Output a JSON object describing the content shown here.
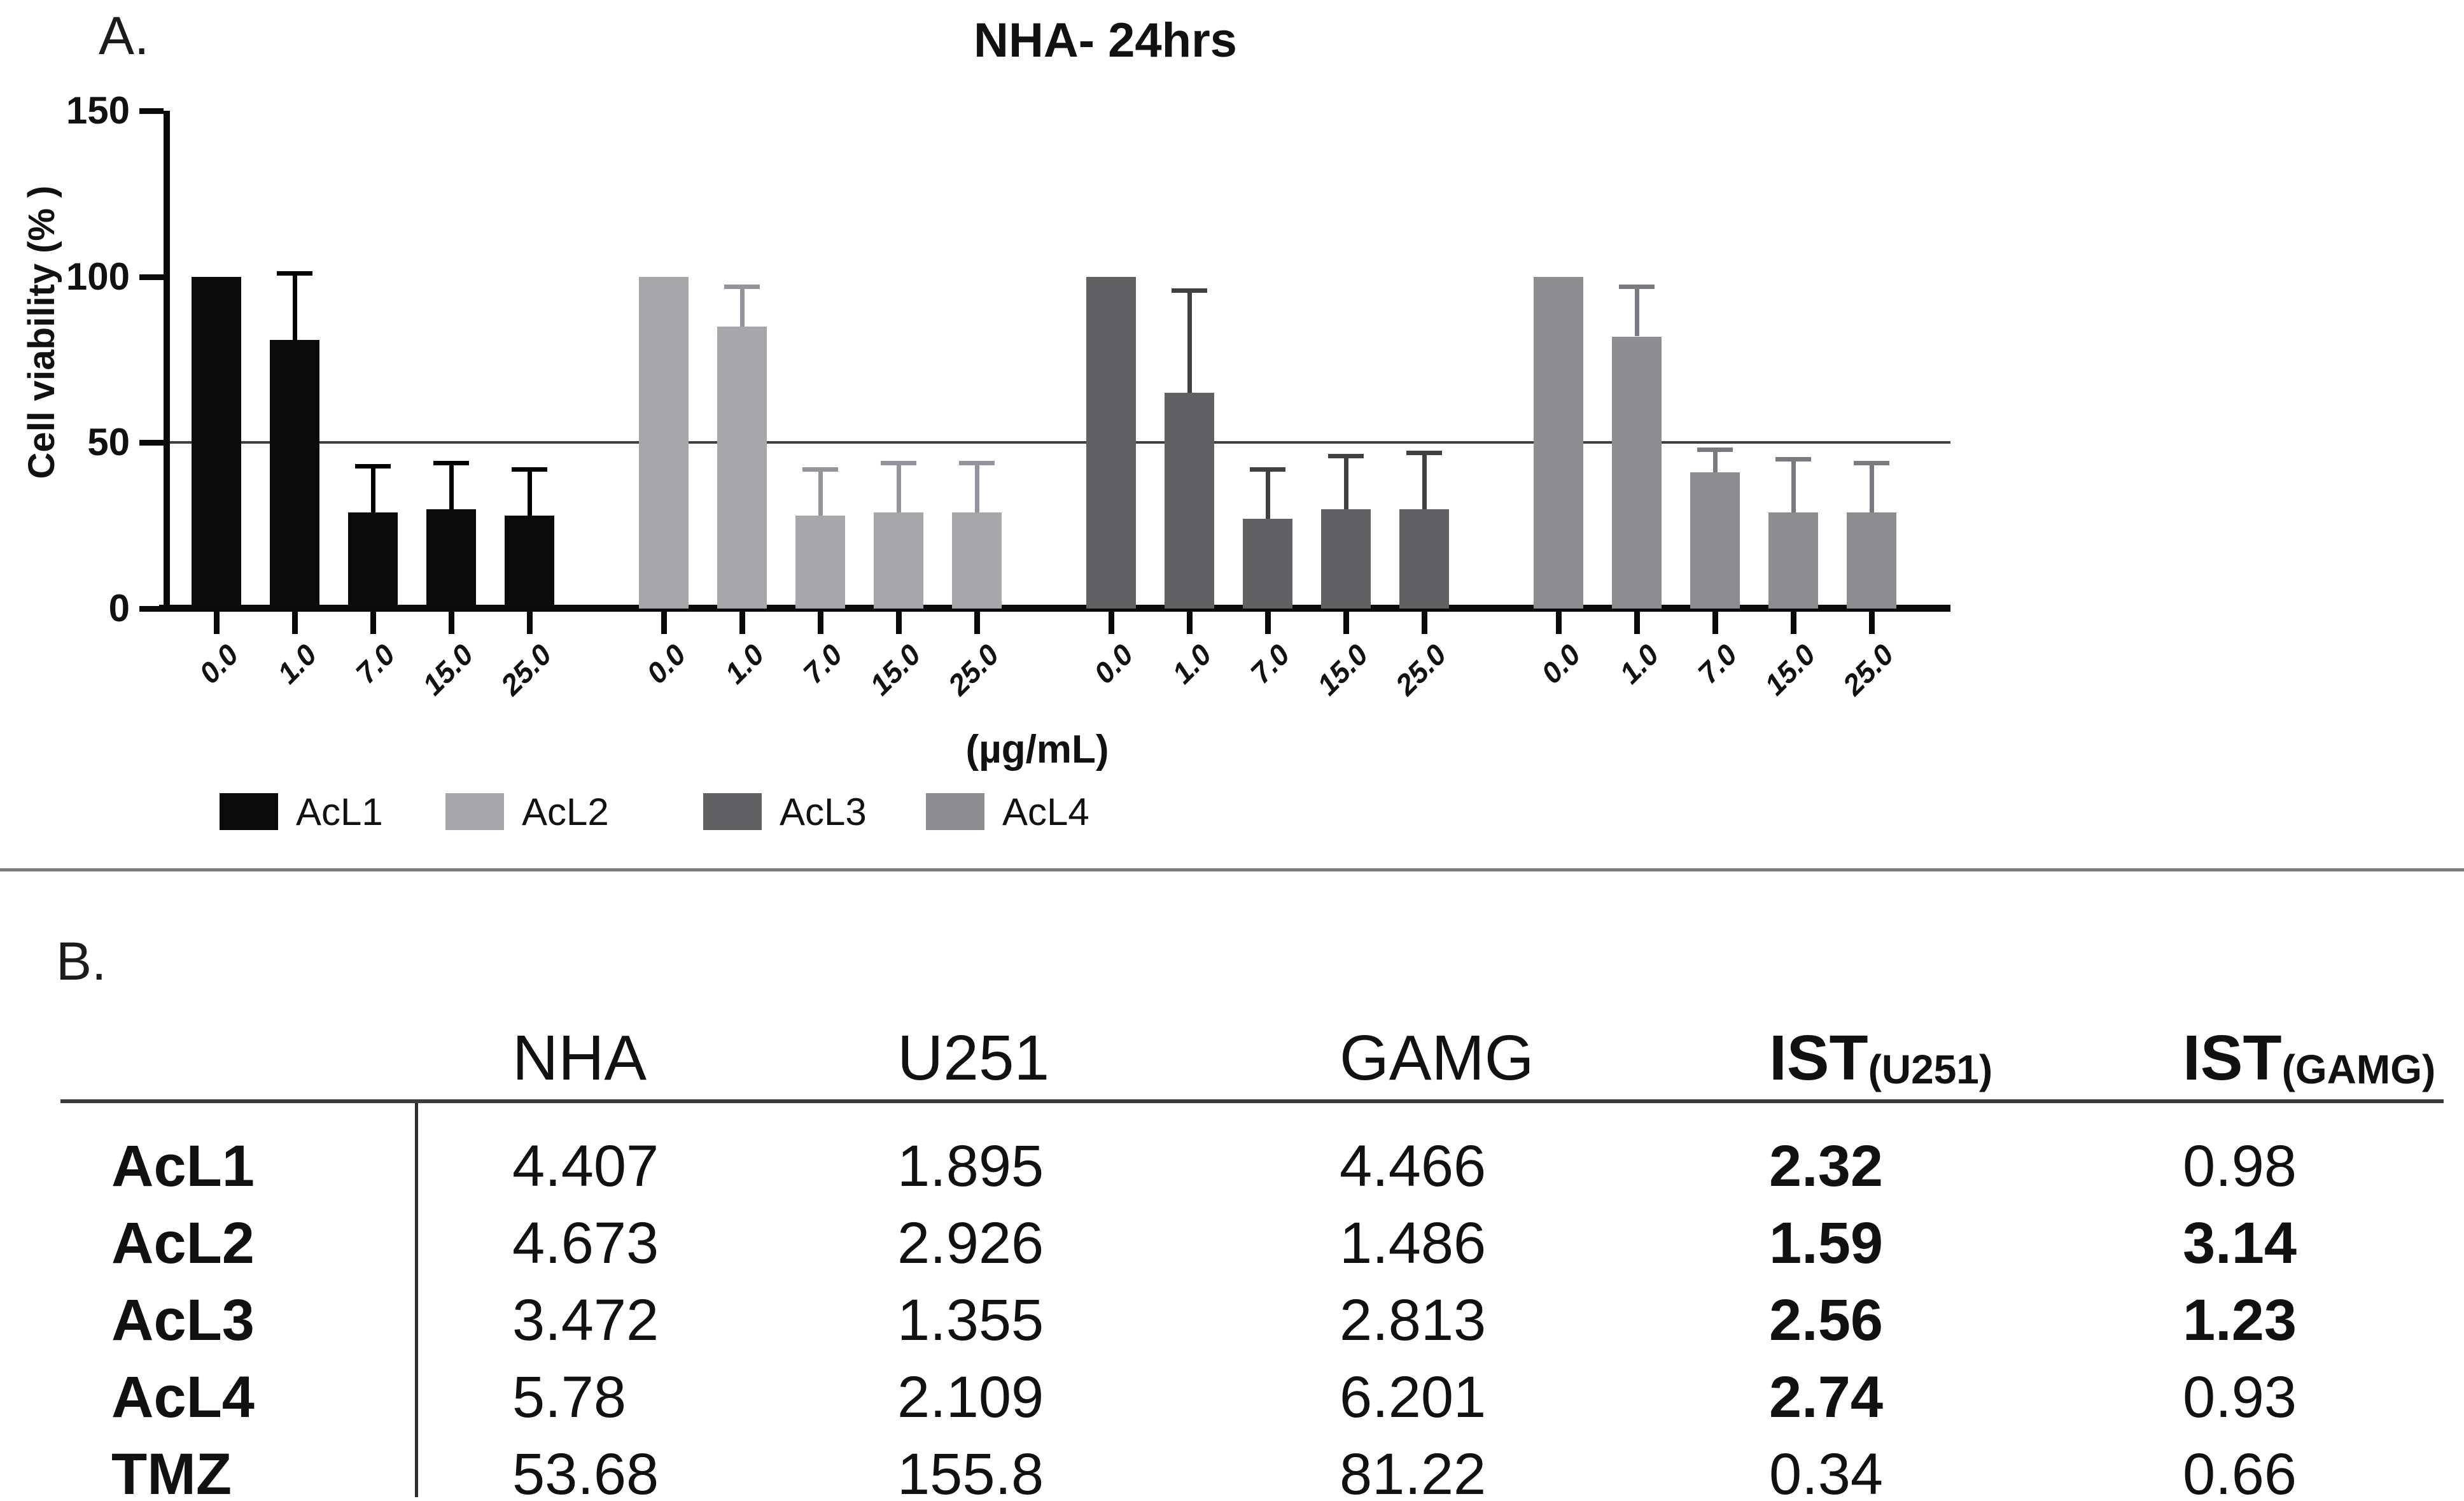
{
  "panel_a": {
    "label": "A.",
    "title": "NHA- 24hrs"
  },
  "chart_data": {
    "type": "bar",
    "title": "NHA- 24hrs",
    "ylabel": "Cell viability (% )",
    "xlabel": "(µg/mL)",
    "ylim": [
      0,
      150
    ],
    "yticks": [
      0,
      50,
      100,
      150
    ],
    "reference_line": 50,
    "grid": false,
    "legend_position": "bottom",
    "categories": [
      "0.0",
      "1.0",
      "7.0",
      "15.0",
      "25.0"
    ],
    "series": [
      {
        "name": "AcL1",
        "color": "#0b0b0b",
        "error_color": "#000000",
        "values": [
          100,
          81,
          29,
          30,
          28
        ],
        "errors_plus": [
          0,
          20,
          14,
          14,
          14
        ]
      },
      {
        "name": "AcL2",
        "color": "#a7a6ab",
        "error_color": "#95949c",
        "values": [
          100,
          85,
          28,
          29,
          29
        ],
        "errors_plus": [
          0,
          12,
          14,
          15,
          15
        ]
      },
      {
        "name": "AcL3",
        "color": "#616163",
        "error_color": "#414144",
        "values": [
          100,
          65,
          27,
          30,
          30
        ],
        "errors_plus": [
          0,
          31,
          15,
          16,
          17
        ]
      },
      {
        "name": "AcL4",
        "color": "#8d8c90",
        "error_color": "#7b7a80",
        "values": [
          100,
          82,
          41,
          29,
          29
        ],
        "errors_plus": [
          0,
          15,
          7,
          16,
          15
        ]
      }
    ]
  },
  "panel_b": {
    "label": "B.",
    "columns": [
      {
        "text": "NHA",
        "sub": "",
        "bold": false
      },
      {
        "text": "U251",
        "sub": "",
        "bold": false
      },
      {
        "text": "GAMG",
        "sub": "",
        "bold": false
      },
      {
        "text": "IST",
        "sub": "(U251)",
        "bold": true
      },
      {
        "text": "IST",
        "sub": "(GAMG)",
        "bold": true
      }
    ],
    "rows": [
      {
        "label": "AcL1",
        "values": [
          "4.407",
          "1.895",
          "4.466",
          "2.32",
          "0.98"
        ],
        "bold": [
          false,
          false,
          false,
          true,
          false
        ]
      },
      {
        "label": "AcL2",
        "values": [
          "4.673",
          "2.926",
          "1.486",
          "1.59",
          "3.14"
        ],
        "bold": [
          false,
          false,
          false,
          true,
          true
        ]
      },
      {
        "label": "AcL3",
        "values": [
          "3.472",
          "1.355",
          "2.813",
          "2.56",
          "1.23"
        ],
        "bold": [
          false,
          false,
          false,
          true,
          true
        ]
      },
      {
        "label": "AcL4",
        "values": [
          "5.78",
          "2.109",
          "6.201",
          "2.74",
          "0.93"
        ],
        "bold": [
          false,
          false,
          false,
          true,
          false
        ]
      },
      {
        "label": "TMZ",
        "values": [
          "53.68",
          "155.8",
          "81.22",
          "0.34",
          "0.66"
        ],
        "bold": [
          false,
          false,
          false,
          false,
          false
        ]
      }
    ]
  }
}
